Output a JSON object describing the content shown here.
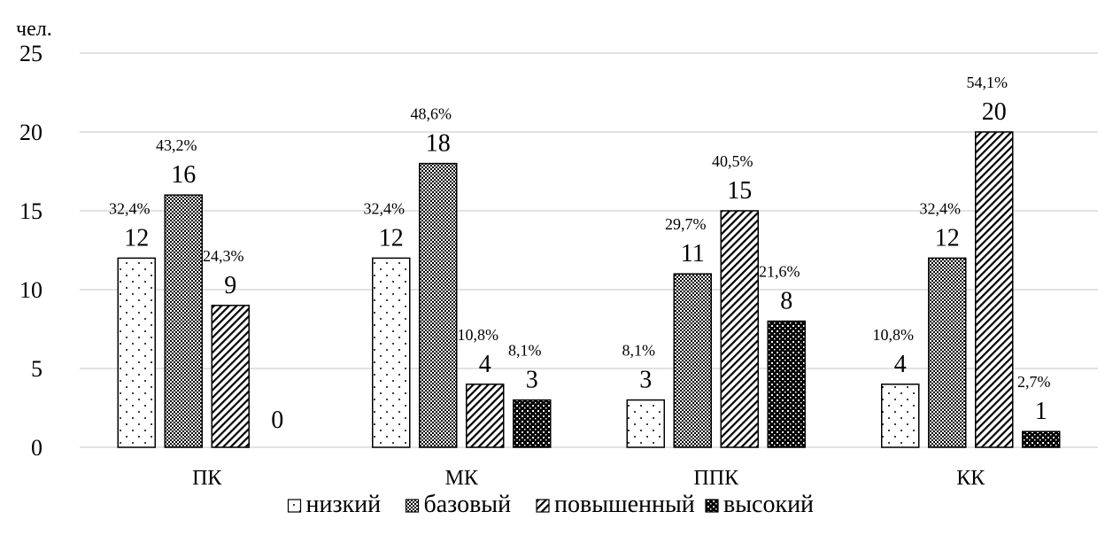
{
  "chart_data": {
    "type": "bar",
    "ylabel": "чел.",
    "ylim": [
      0,
      25
    ],
    "yticks": [
      0,
      5,
      10,
      15,
      20,
      25
    ],
    "grid": true,
    "legend_position": "bottom",
    "categories": [
      "ПК",
      "МК",
      "ППК",
      "КК"
    ],
    "series": [
      {
        "name": "низкий",
        "pattern": "dots",
        "values": [
          12,
          12,
          3,
          4
        ],
        "percent_labels": [
          "32,4%",
          "32,4%",
          "8,1%",
          "10,8%"
        ]
      },
      {
        "name": "базовый",
        "pattern": "checker",
        "values": [
          16,
          18,
          11,
          12
        ],
        "percent_labels": [
          "43,2%",
          "48,6%",
          "29,7%",
          "32,4%"
        ]
      },
      {
        "name": "повышенный",
        "pattern": "diagonal",
        "values": [
          9,
          4,
          15,
          20
        ],
        "percent_labels": [
          "24,3%",
          "10,8%",
          "40,5%",
          "54,1%"
        ]
      },
      {
        "name": "высокий",
        "pattern": "grid",
        "values": [
          0,
          3,
          8,
          1
        ],
        "percent_labels": [
          "",
          "8,1%",
          "21,6%",
          "2,7%"
        ]
      }
    ],
    "colors": {
      "bar_stroke": "#000000",
      "gridline": "#d9d9d9",
      "pattern_ink": "#000000",
      "background": "#ffffff"
    }
  }
}
